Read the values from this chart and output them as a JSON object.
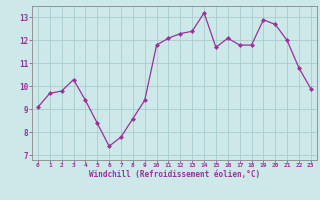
{
  "x": [
    0,
    1,
    2,
    3,
    4,
    5,
    6,
    7,
    8,
    9,
    10,
    11,
    12,
    13,
    14,
    15,
    16,
    17,
    18,
    19,
    20,
    21,
    22,
    23
  ],
  "y": [
    9.1,
    9.7,
    9.8,
    10.3,
    9.4,
    8.4,
    7.4,
    7.8,
    8.6,
    9.4,
    11.8,
    12.1,
    12.3,
    12.4,
    13.2,
    11.7,
    12.1,
    11.8,
    11.8,
    12.9,
    12.7,
    12.0,
    10.8,
    9.9
  ],
  "line_color": "#993399",
  "marker_color": "#993399",
  "bg_color": "#cce8e8",
  "grid_color": "#aacccc",
  "xlabel": "Windchill (Refroidissement éolien,°C)",
  "xlabel_color": "#993399",
  "ylim": [
    6.8,
    13.5
  ],
  "yticks": [
    7,
    8,
    9,
    10,
    11,
    12,
    13
  ],
  "xticks": [
    0,
    1,
    2,
    3,
    4,
    5,
    6,
    7,
    8,
    9,
    10,
    11,
    12,
    13,
    14,
    15,
    16,
    17,
    18,
    19,
    20,
    21,
    22,
    23
  ],
  "tick_label_color": "#993399",
  "axis_color": "#888888",
  "font_name": "monospace"
}
